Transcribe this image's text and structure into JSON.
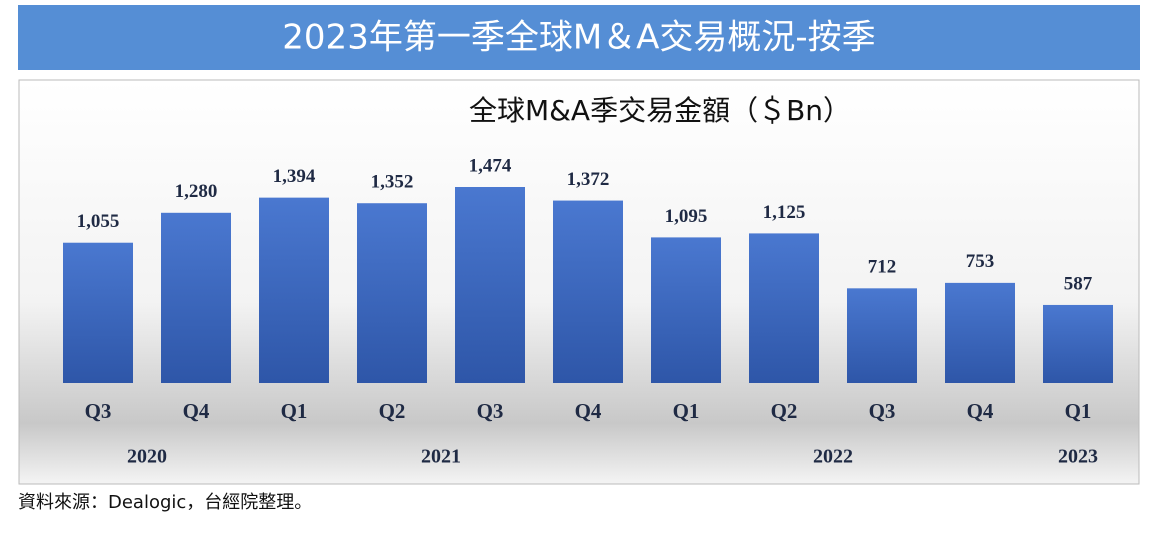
{
  "header": {
    "title": "2023年第一季全球M＆A交易概況-按季"
  },
  "chart_data": {
    "type": "bar",
    "title": "全球M&A季交易金額（＄Bn）",
    "categories": [
      "Q3",
      "Q4",
      "Q1",
      "Q2",
      "Q3",
      "Q4",
      "Q1",
      "Q2",
      "Q3",
      "Q4",
      "Q1"
    ],
    "years": [
      "2020",
      "2020",
      "2021",
      "2021",
      "2021",
      "2021",
      "2022",
      "2022",
      "2022",
      "2022",
      "2023"
    ],
    "values": [
      1055,
      1280,
      1394,
      1352,
      1474,
      1372,
      1095,
      1125,
      712,
      753,
      587
    ],
    "value_labels": [
      "1,055",
      "1,280",
      "1,394",
      "1,352",
      "1,474",
      "1,372",
      "1,095",
      "1,125",
      "712",
      "753",
      "587"
    ],
    "color": "#4472c4"
  },
  "footer": {
    "source": "資料來源：Dealogic，台經院整理。"
  }
}
